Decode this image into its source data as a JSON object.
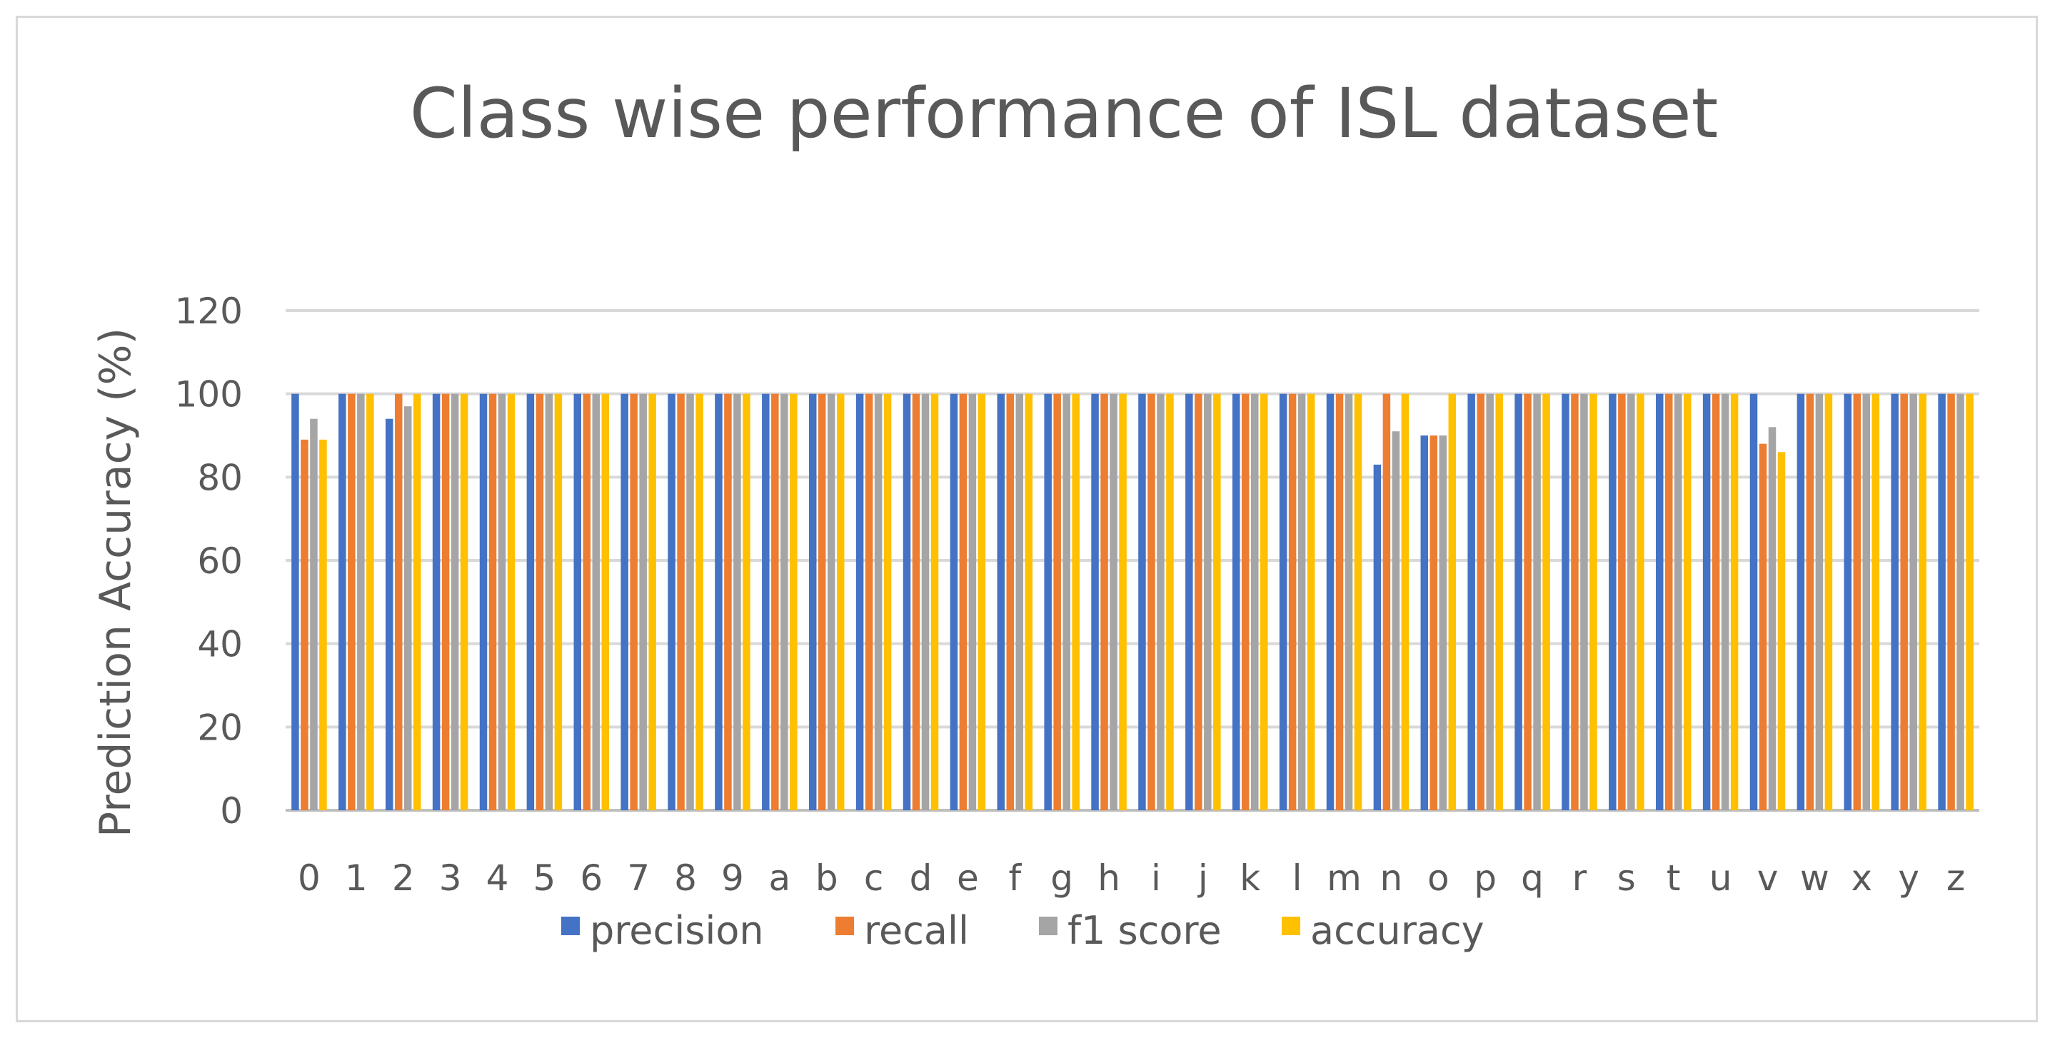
{
  "chart_data": {
    "type": "bar",
    "title": "Class wise performance of ISL dataset",
    "xlabel": "",
    "ylabel": "Prediction Accuracy (%)",
    "ylim": [
      0,
      120
    ],
    "yticks": [
      0,
      20,
      40,
      60,
      80,
      100,
      120
    ],
    "grid": true,
    "legend_position": "bottom",
    "categories": [
      "0",
      "1",
      "2",
      "3",
      "4",
      "5",
      "6",
      "7",
      "8",
      "9",
      "a",
      "b",
      "c",
      "d",
      "e",
      "f",
      "g",
      "h",
      "i",
      "j",
      "k",
      "l",
      "m",
      "n",
      "o",
      "p",
      "q",
      "r",
      "s",
      "t",
      "u",
      "v",
      "w",
      "x",
      "y",
      "z"
    ],
    "series": [
      {
        "name": "precision",
        "color": "#4472C4",
        "values": [
          100,
          100,
          94,
          100,
          100,
          100,
          100,
          100,
          100,
          100,
          100,
          100,
          100,
          100,
          100,
          100,
          100,
          100,
          100,
          100,
          100,
          100,
          100,
          83,
          90,
          100,
          100,
          100,
          100,
          100,
          100,
          100,
          100,
          100,
          100,
          100
        ]
      },
      {
        "name": "recall",
        "color": "#ED7D31",
        "values": [
          89,
          100,
          100,
          100,
          100,
          100,
          100,
          100,
          100,
          100,
          100,
          100,
          100,
          100,
          100,
          100,
          100,
          100,
          100,
          100,
          100,
          100,
          100,
          100,
          90,
          100,
          100,
          100,
          100,
          100,
          100,
          88,
          100,
          100,
          100,
          100
        ]
      },
      {
        "name": "f1 score",
        "color": "#A5A5A5",
        "values": [
          94,
          100,
          97,
          100,
          100,
          100,
          100,
          100,
          100,
          100,
          100,
          100,
          100,
          100,
          100,
          100,
          100,
          100,
          100,
          100,
          100,
          100,
          100,
          91,
          90,
          100,
          100,
          100,
          100,
          100,
          100,
          92,
          100,
          100,
          100,
          100
        ]
      },
      {
        "name": "accuracy",
        "color": "#FFC000",
        "values": [
          89,
          100,
          100,
          100,
          100,
          100,
          100,
          100,
          100,
          100,
          100,
          100,
          100,
          100,
          100,
          100,
          100,
          100,
          100,
          100,
          100,
          100,
          100,
          100,
          100,
          100,
          100,
          100,
          100,
          100,
          100,
          86,
          100,
          100,
          100,
          100
        ]
      }
    ]
  },
  "style": {
    "grid_color": "#d9d9d9",
    "axis_color": "#bfbfbf",
    "text_color": "#595959"
  }
}
